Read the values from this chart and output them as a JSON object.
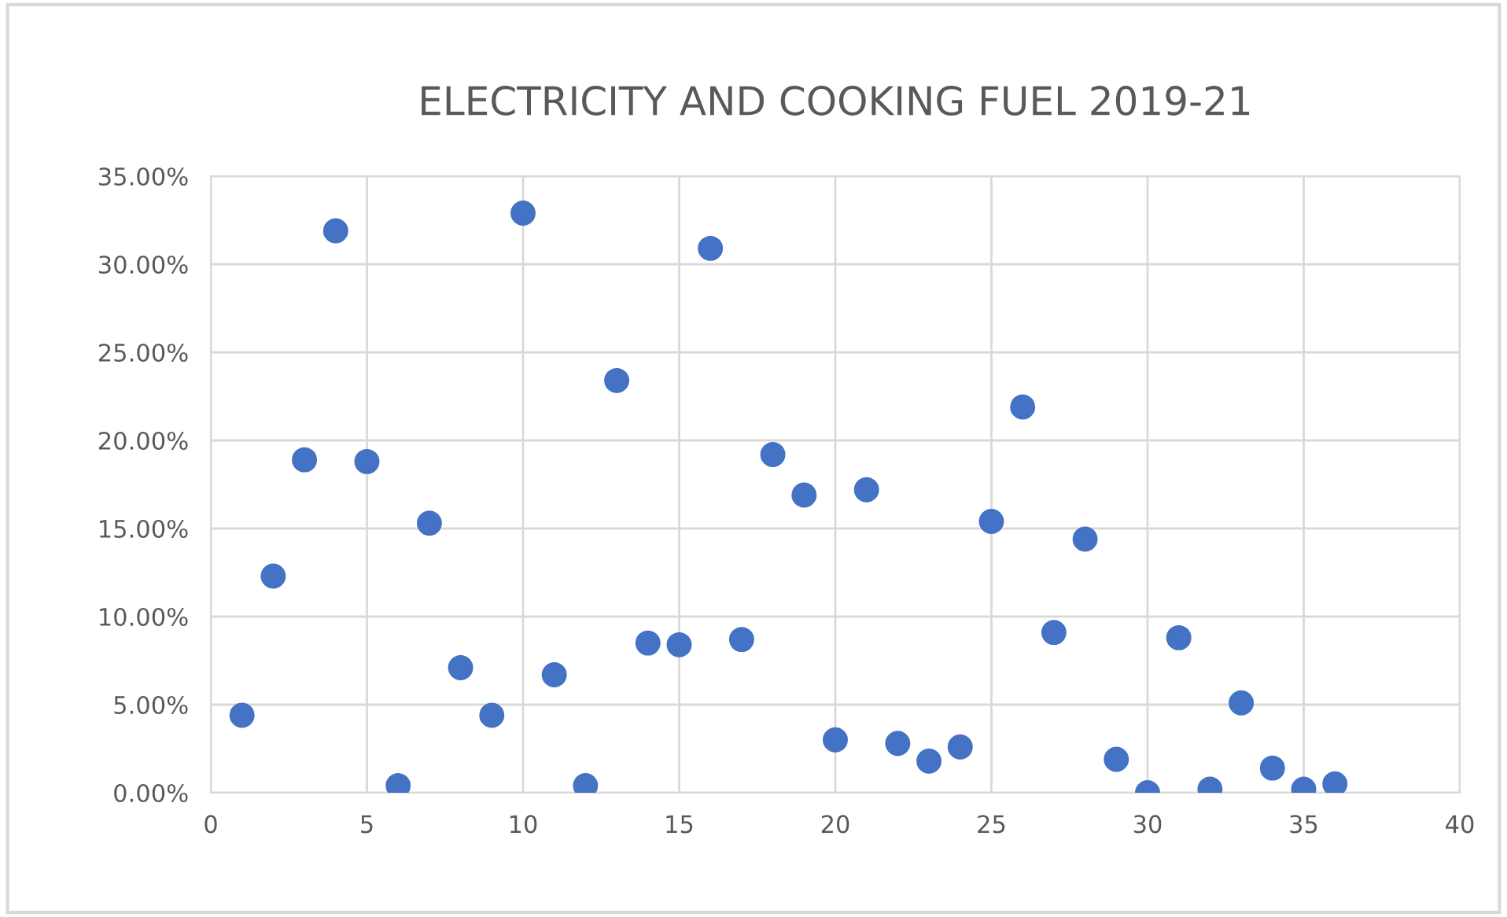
{
  "chart_data": {
    "type": "scatter",
    "title": "ELECTRICITY AND COOKING FUEL 2019-21",
    "x": [
      1,
      2,
      3,
      4,
      5,
      6,
      7,
      8,
      9,
      10,
      11,
      12,
      13,
      14,
      15,
      16,
      17,
      18,
      19,
      20,
      21,
      22,
      23,
      24,
      25,
      26,
      27,
      28,
      29,
      30,
      31,
      32,
      33,
      34,
      35,
      36
    ],
    "series": [
      {
        "color": "#4472c4",
        "values": [
          4.4,
          12.3,
          18.9,
          31.9,
          18.8,
          0.4,
          15.3,
          7.1,
          4.4,
          32.9,
          6.7,
          0.4,
          23.4,
          8.5,
          8.4,
          30.9,
          8.7,
          19.2,
          16.9,
          3.0,
          17.2,
          2.8,
          1.8,
          2.6,
          15.4,
          21.9,
          9.1,
          14.4,
          1.9,
          0.0,
          8.8,
          0.2,
          5.1,
          1.4,
          0.2,
          0.5
        ]
      }
    ],
    "xlim": [
      0,
      40
    ],
    "xticks": [
      0,
      5,
      10,
      15,
      20,
      25,
      30,
      35,
      40
    ],
    "ylim": [
      0,
      35
    ],
    "yticks": [
      {
        "value": 0,
        "label": "0.00%"
      },
      {
        "value": 5,
        "label": "5.00%"
      },
      {
        "value": 10,
        "label": "10.00%"
      },
      {
        "value": 15,
        "label": "15.00%"
      },
      {
        "value": 20,
        "label": "20.00%"
      },
      {
        "value": 25,
        "label": "25.00%"
      },
      {
        "value": 30,
        "label": "30.00%"
      },
      {
        "value": 35,
        "label": "35.00%"
      }
    ],
    "grid": true,
    "marker": "circle",
    "legend": false
  }
}
